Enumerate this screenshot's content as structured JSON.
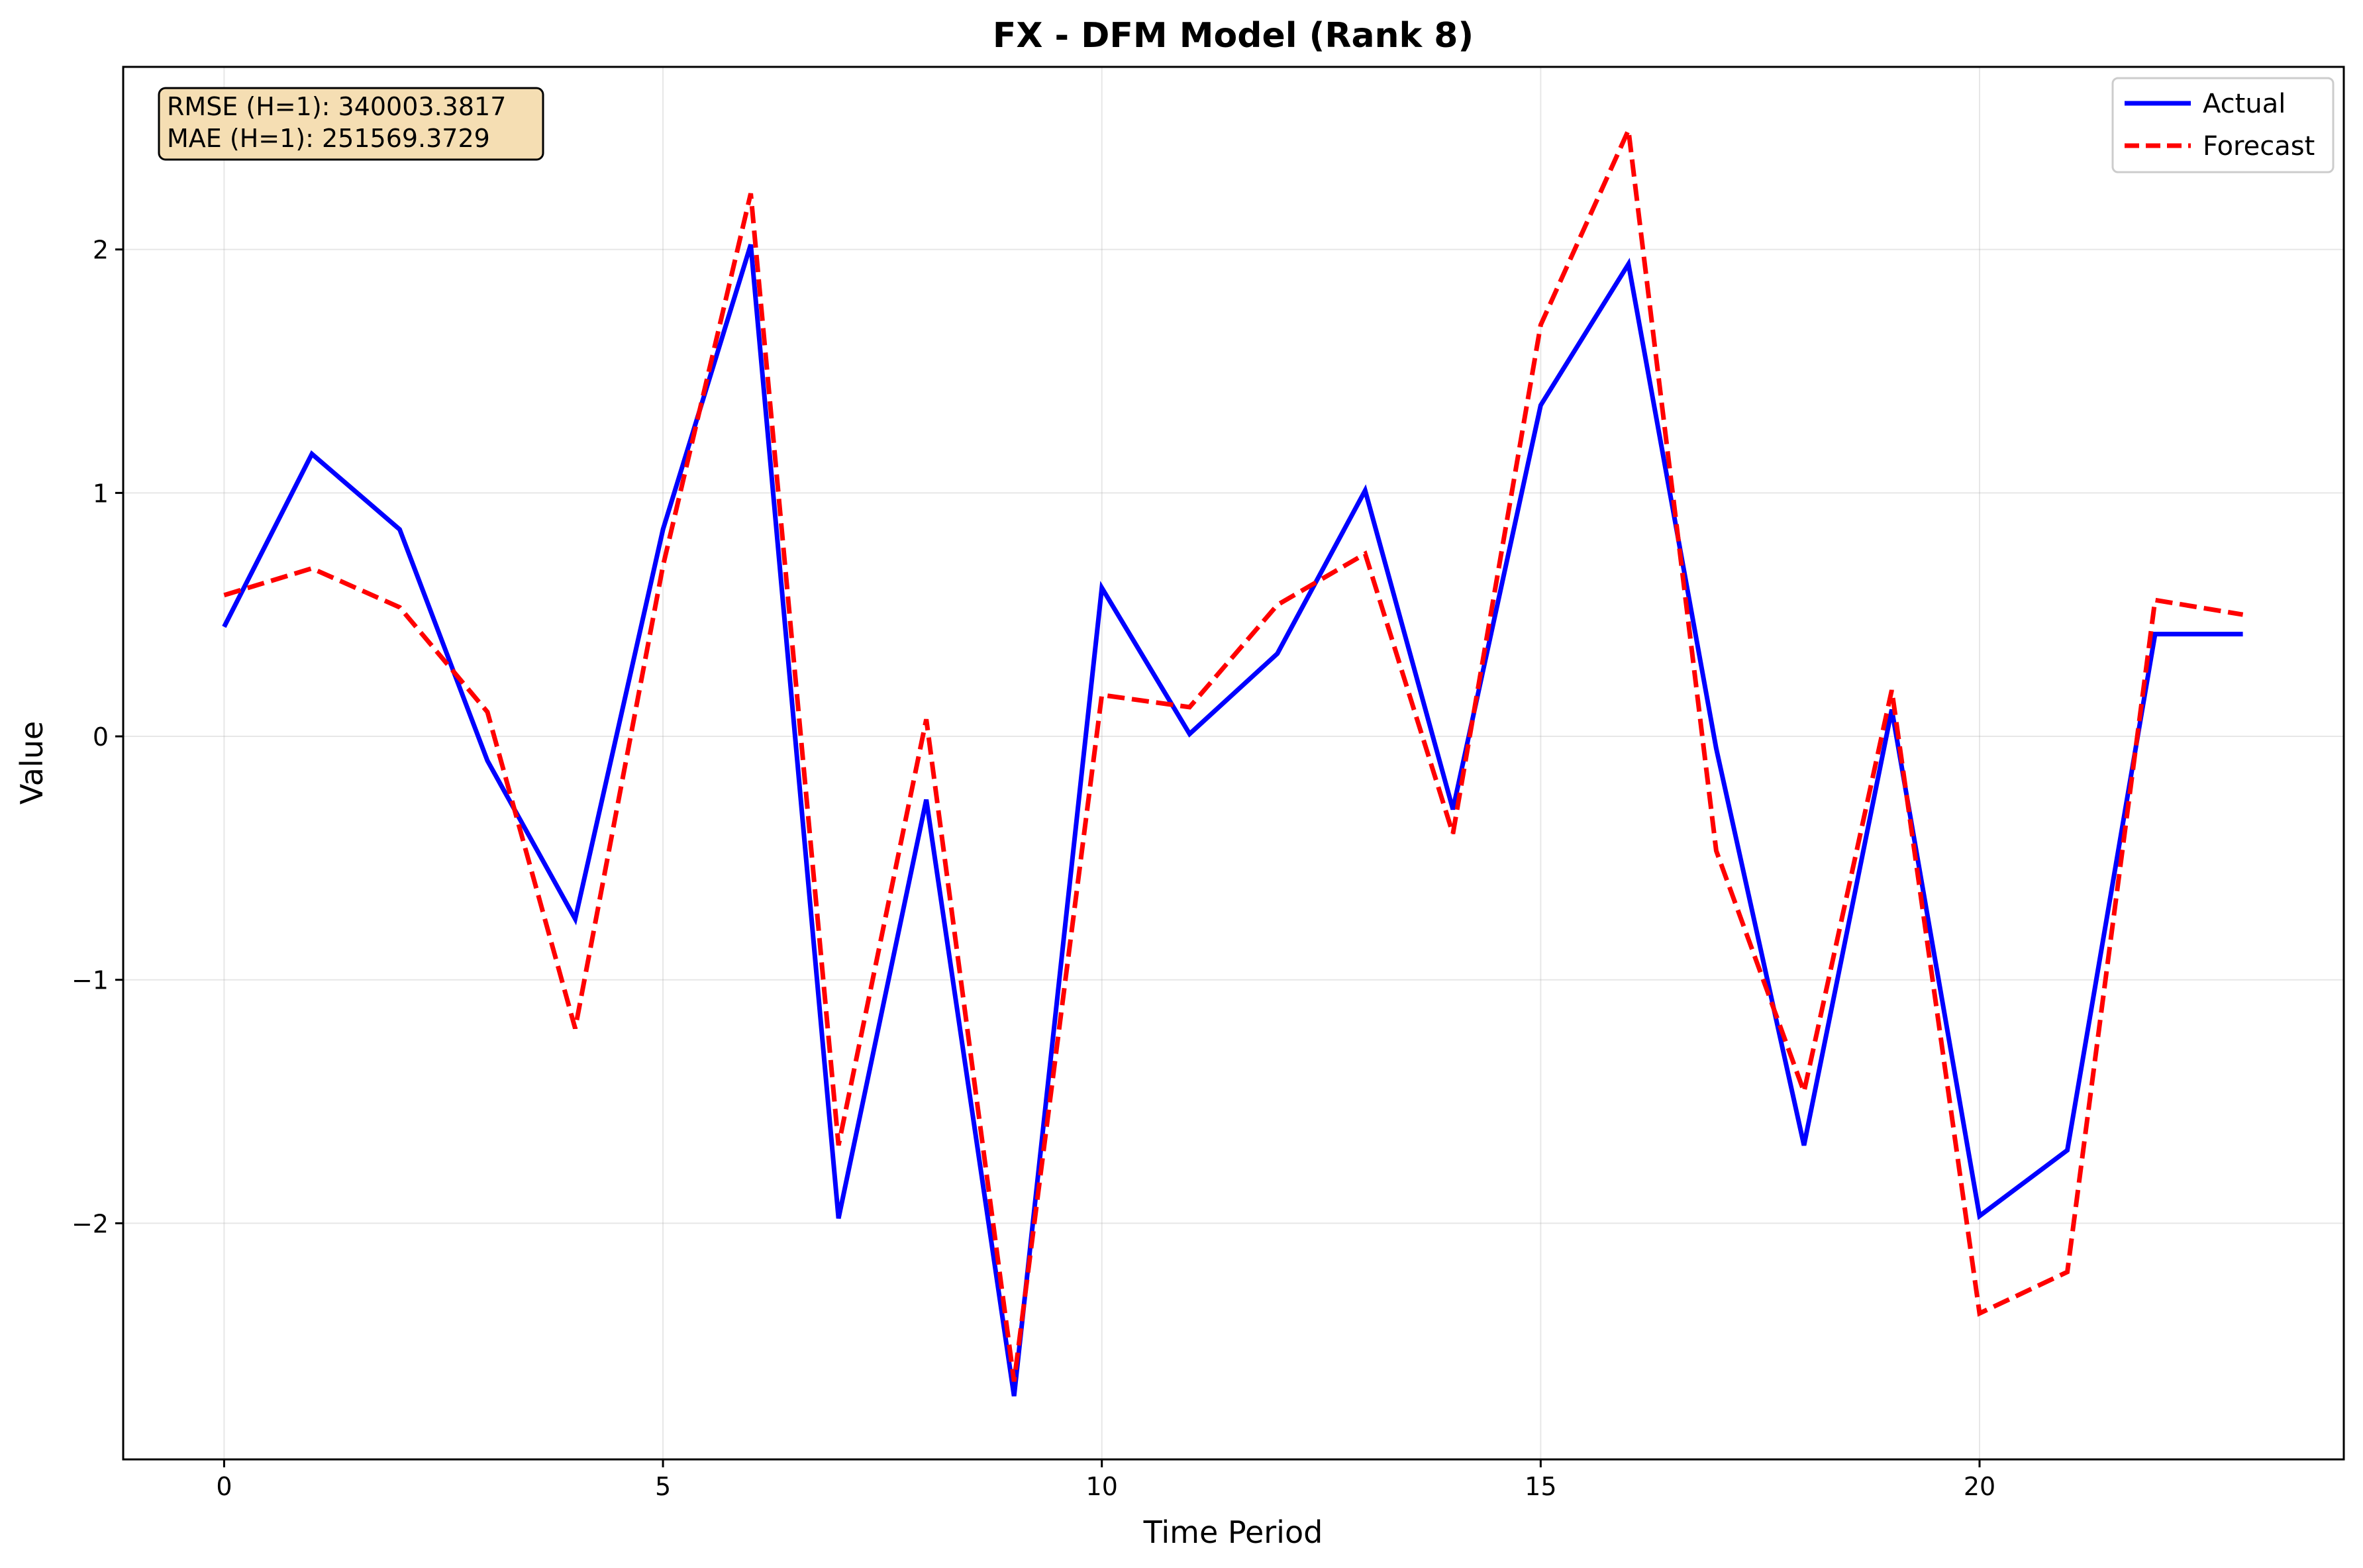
{
  "chart_data": {
    "type": "line",
    "title": "FX - DFM Model (Rank 8)",
    "xlabel": "Time Period",
    "ylabel": "Value",
    "xlim": [
      -1.15,
      24.15
    ],
    "ylim": [
      -2.97,
      2.75
    ],
    "x_ticks": [
      0,
      5,
      10,
      15,
      20
    ],
    "x_tick_labels": [
      "0",
      "5",
      "10",
      "15",
      "20"
    ],
    "y_ticks": [
      -2,
      -1,
      0,
      1,
      2
    ],
    "y_tick_labels": [
      "−2",
      "−1",
      "0",
      "1",
      "2"
    ],
    "grid": true,
    "legend_position": "top-right",
    "x": [
      0,
      1,
      2,
      3,
      4,
      5,
      6,
      7,
      8,
      9,
      10,
      11,
      12,
      13,
      14,
      15,
      16,
      17,
      18,
      19,
      20,
      21,
      22,
      23
    ],
    "series": [
      {
        "name": "Actual",
        "color": "#0000ff",
        "style": "solid",
        "values": [
          0.45,
          1.16,
          0.85,
          -0.1,
          -0.75,
          0.85,
          2.02,
          -1.98,
          -0.26,
          -2.71,
          0.61,
          0.01,
          0.34,
          1.01,
          -0.3,
          1.36,
          1.94,
          -0.05,
          -1.68,
          0.11,
          -1.97,
          -1.7,
          0.42,
          0.42
        ]
      },
      {
        "name": "Forecast",
        "color": "#ff0000",
        "style": "dashed",
        "values": [
          0.58,
          0.69,
          0.53,
          0.1,
          -1.2,
          0.7,
          2.23,
          -1.68,
          0.07,
          -2.65,
          0.17,
          0.12,
          0.54,
          0.75,
          -0.4,
          1.69,
          2.49,
          -0.47,
          -1.46,
          0.19,
          -2.37,
          -2.2,
          0.56,
          0.5
        ]
      }
    ],
    "annotation": {
      "lines": [
        "RMSE (H=1): 340003.3817",
        "MAE (H=1): 251569.3729"
      ],
      "background": "#f5deb3"
    }
  }
}
